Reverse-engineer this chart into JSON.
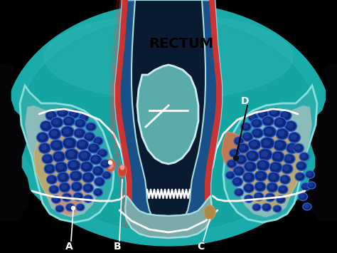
{
  "title": "RECTUM",
  "label_d": "D",
  "label_a": "A",
  "label_b": "B",
  "label_c": "C",
  "bg_color": "#000000",
  "teal_main": "#2aacaa",
  "teal_dark": "#0d8080",
  "teal_light": "#55cccc",
  "teal_mid": "#1a9898",
  "blue_cell": "#1a3a8a",
  "blue_cell_light": "#2a55bb",
  "blue_cell_edge": "#4488dd",
  "red_wall": "#cc3333",
  "red_glow": "#ff6655",
  "dark_blue_wall": "#1a4070",
  "lumen_color": "#001833",
  "white_line": "#ffffff",
  "tan_fat": "#c4a878",
  "tan_abscess_left": "#c49070",
  "tan_abscess_right": "#b08a50",
  "tan_small": "#b09050",
  "bone_black": "#050508",
  "prostate_fill": "#88bbbb",
  "prostate_edge": "#aadddd",
  "anal_grey": "#9ab8b8",
  "skin_outer": "#0a6060"
}
